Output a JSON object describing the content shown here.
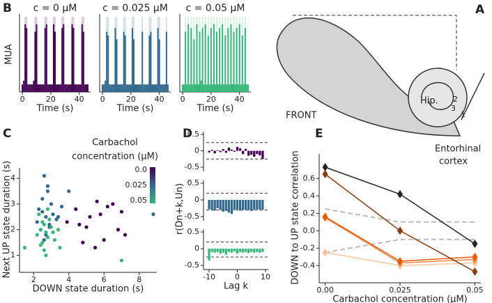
{
  "panels": {
    "a": "A",
    "b": "B",
    "c": "C",
    "d": "D",
    "e": "E"
  },
  "diagram": {
    "front": "FRONT",
    "hip": "Hip.",
    "layer1": "1",
    "layer2": "2",
    "layer3": "3",
    "region": [
      "Entorhinal",
      "cortex"
    ]
  },
  "chart_data": [
    {
      "type": "area",
      "title": "c = 0 μM",
      "ylabel": "MUA",
      "xlabel": "Time (s)",
      "color": "#440154",
      "x": [
        0,
        1,
        2,
        3,
        4,
        5,
        6,
        7,
        8,
        9,
        10,
        11,
        12,
        13,
        14,
        15,
        16,
        17,
        18,
        19,
        20,
        21,
        22,
        23,
        24,
        25,
        26,
        27,
        28,
        29,
        30,
        31,
        32,
        33,
        34,
        35,
        36,
        37,
        38,
        39,
        40,
        41,
        42,
        43,
        44,
        45,
        46
      ],
      "values": [
        0.1,
        0.15,
        0.9,
        0.85,
        0.1,
        0.1,
        0.1,
        0.1,
        0.15,
        0.8,
        0.9,
        0.1,
        0.1,
        0.1,
        0.1,
        0.1,
        0.85,
        0.9,
        0.1,
        0.1,
        0.1,
        0.1,
        0.9,
        0.8,
        0.1,
        0.1,
        0.1,
        0.1,
        0.85,
        0.9,
        0.1,
        0.1,
        0.1,
        0.1,
        0.1,
        0.9,
        0.85,
        0.1,
        0.1,
        0.1,
        0.1,
        0.1,
        0.9,
        0.8,
        0.1,
        0.1,
        0.1
      ],
      "xlim": [
        -2,
        48
      ],
      "ylim": [
        0,
        1
      ],
      "xticks": [
        0,
        20,
        40
      ]
    },
    {
      "type": "area",
      "title": "c = 0.025 μM",
      "xlabel": "Time (s)",
      "color": "#31688e",
      "x": [
        0,
        1,
        2,
        3,
        4,
        5,
        6,
        7,
        8,
        9,
        10,
        11,
        12,
        13,
        14,
        15,
        16,
        17,
        18,
        19,
        20,
        21,
        22,
        23,
        24,
        25,
        26,
        27,
        28,
        29,
        30,
        31,
        32,
        33,
        34,
        35,
        36,
        37,
        38,
        39,
        40,
        41,
        42,
        43,
        44,
        45,
        46
      ],
      "values": [
        0.1,
        0.1,
        0.15,
        0.8,
        0.75,
        0.1,
        0.1,
        0.1,
        0.1,
        0.85,
        0.7,
        0.1,
        0.1,
        0.1,
        0.1,
        0.8,
        0.75,
        0.1,
        0.1,
        0.1,
        0.1,
        0.85,
        0.7,
        0.1,
        0.1,
        0.1,
        0.1,
        0.1,
        0.8,
        0.1,
        0.1,
        0.1,
        0.1,
        0.75,
        0.8,
        0.1,
        0.1,
        0.1,
        0.1,
        0.85,
        0.7,
        0.1,
        0.1,
        0.1,
        0.1,
        0.8,
        0.1
      ],
      "xlim": [
        -2,
        48
      ],
      "ylim": [
        0,
        1
      ],
      "xticks": [
        0,
        20,
        40
      ]
    },
    {
      "type": "area",
      "title": "c = 0.05 μM",
      "xlabel": "Time (s)",
      "color": "#35b779",
      "x": [
        0,
        1,
        2,
        3,
        4,
        5,
        6,
        7,
        8,
        9,
        10,
        11,
        12,
        13,
        14,
        15,
        16,
        17,
        18,
        19,
        20,
        21,
        22,
        23,
        24,
        25,
        26,
        27,
        28,
        29,
        30,
        31,
        32,
        33,
        34,
        35,
        36,
        37,
        38,
        39,
        40,
        41,
        42,
        43,
        44,
        45,
        46
      ],
      "values": [
        0.1,
        0.1,
        0.8,
        0.1,
        0.9,
        0.1,
        0.85,
        0.1,
        0.7,
        0.1,
        0.9,
        0.1,
        0.8,
        0.15,
        0.85,
        0.1,
        0.9,
        0.1,
        0.75,
        0.1,
        0.85,
        0.1,
        0.9,
        0.1,
        0.8,
        0.1,
        0.85,
        0.1,
        0.9,
        0.1,
        0.75,
        0.1,
        0.85,
        0.1,
        0.9,
        0.1,
        0.8,
        0.1,
        0.85,
        0.1,
        0.9,
        0.1,
        0.75,
        0.1,
        0.85,
        0.1,
        0.1
      ],
      "xlim": [
        -2,
        48
      ],
      "ylim": [
        0,
        1
      ],
      "xticks": [
        0,
        20,
        40
      ]
    },
    {
      "type": "scatter",
      "xlabel": "DOWN state duration (s)",
      "ylabel": "Next UP state duration (s)",
      "colorbar_label": [
        "Carbachol",
        "concentration (μM)"
      ],
      "xlim": [
        1.2,
        9
      ],
      "ylim": [
        0.5,
        4.3
      ],
      "xticks": [
        2,
        4,
        6,
        8
      ],
      "yticks": [
        1,
        2,
        3,
        4
      ],
      "series": [
        {
          "name": "0.0",
          "color": "#440154",
          "x": [
            4.6,
            5.2,
            5.8,
            6.2,
            6.5,
            7.0,
            4.8,
            5.5,
            6.0,
            6.8,
            7.2,
            5.0,
            3.9,
            4.4,
            5.6
          ],
          "values": [
            2.2,
            2.5,
            2.6,
            2.9,
            3.0,
            2.7,
            1.5,
            1.3,
            1.6,
            2.0,
            1.8,
            2.1,
            2.3,
            2.8,
            3.1
          ]
        },
        {
          "name": "0.025",
          "color": "#31688e",
          "x": [
            2.3,
            2.5,
            2.7,
            2.9,
            3.1,
            2.4,
            2.6,
            2.8,
            3.3,
            3.6,
            4.0,
            2.2,
            2.7,
            3.0,
            8.8,
            2.5,
            2.9,
            3.4,
            2.6,
            2.8
          ],
          "values": [
            2.8,
            3.2,
            2.5,
            2.2,
            2.6,
            2.0,
            4.1,
            3.5,
            2.4,
            2.9,
            3.5,
            2.3,
            1.8,
            3.0,
            2.6,
            2.7,
            2.1,
            2.5,
            1.6,
            3.7
          ]
        },
        {
          "name": "0.05",
          "color": "#35b779",
          "x": [
            2.2,
            2.4,
            2.5,
            2.6,
            2.7,
            2.8,
            2.9,
            3.0,
            3.2,
            3.5,
            2.3,
            2.6,
            2.8,
            3.1,
            2.5,
            2.7,
            3.4,
            2.4,
            7.0,
            1.5
          ],
          "values": [
            1.8,
            2.0,
            1.5,
            2.2,
            1.9,
            1.7,
            2.4,
            2.1,
            1.6,
            1.3,
            2.6,
            1.2,
            2.8,
            1.9,
            2.3,
            1.0,
            2.0,
            1.4,
            0.8,
            1.3
          ]
        }
      ]
    },
    {
      "type": "bar",
      "color": "#440154",
      "x": [
        -10,
        -9,
        -8,
        -7,
        -6,
        -5,
        -4,
        -3,
        -2,
        -1,
        0,
        1,
        2,
        3,
        4,
        5,
        6,
        7,
        8,
        9
      ],
      "values": [
        -0.05,
        0.03,
        -0.08,
        0.02,
        -0.04,
        0.05,
        -0.06,
        0.1,
        0.04,
        -0.03,
        0.12,
        0.08,
        -0.1,
        0.06,
        -0.15,
        -0.12,
        -0.18,
        -0.1,
        -0.14,
        -0.25
      ],
      "bounds": [
        0.25,
        -0.25
      ],
      "xlim": [
        -12,
        11
      ],
      "ylim": [
        -0.5,
        0.5
      ],
      "yticks": [
        0.5,
        0,
        -0.5
      ]
    },
    {
      "type": "bar",
      "color": "#31688e",
      "ylabel": "r(Dn+k,Un)",
      "x": [
        -10,
        -9,
        -8,
        -7,
        -6,
        -5,
        -4,
        -3,
        -2,
        -1,
        0,
        1,
        2,
        3,
        4,
        5,
        6,
        7,
        8,
        9
      ],
      "values": [
        -0.28,
        -0.3,
        -0.32,
        -0.25,
        -0.3,
        -0.35,
        -0.33,
        -0.38,
        -0.42,
        -0.3,
        -0.28,
        -0.32,
        -0.3,
        -0.29,
        -0.31,
        -0.33,
        -0.3,
        -0.28,
        -0.3,
        -0.29
      ],
      "bounds": [
        0.2,
        -0.3
      ],
      "xlim": [
        -12,
        11
      ],
      "ylim": [
        -0.5,
        0.5
      ],
      "yticks": [
        0.5,
        0,
        -0.5
      ]
    },
    {
      "type": "bar",
      "color": "#35b779",
      "xlabel": "Lag k",
      "x": [
        -10,
        -9,
        -8,
        -7,
        -6,
        -5,
        -4,
        -3,
        -2,
        -1,
        0,
        1,
        2,
        3,
        4,
        5,
        6,
        7,
        8,
        9
      ],
      "values": [
        -0.35,
        -0.1,
        -0.12,
        -0.1,
        -0.15,
        -0.12,
        -0.18,
        -0.1,
        -0.12,
        -0.08,
        -0.15,
        -0.1,
        -0.12,
        -0.1,
        -0.13,
        -0.1,
        -0.12,
        -0.1,
        -0.12,
        -0.1
      ],
      "bounds": [
        0.2,
        -0.25
      ],
      "xlim": [
        -12,
        11
      ],
      "ylim": [
        -0.5,
        0.5
      ],
      "yticks": [
        0.5,
        0,
        -0.5
      ],
      "xticks": [
        -10,
        0,
        10
      ]
    },
    {
      "type": "line",
      "xlabel": "Carbachol concentration (μM)",
      "ylabel": "DOWN to UP state correlation",
      "x": [
        0,
        0.025,
        0.05
      ],
      "xlim": [
        -0.002,
        0.052
      ],
      "ylim": [
        -0.55,
        0.85
      ],
      "xticks": [
        {
          "value": 0,
          "label": "0.00"
        },
        0.025,
        0.05
      ],
      "yticks": [
        0.6,
        0.4,
        0.2,
        {
          "value": 0,
          "label": "0.0"
        },
        -0.2,
        -0.4
      ],
      "series": [
        {
          "color": "#bbbbbb",
          "dash": true,
          "values": [
            0.25,
            0.1,
            0.1
          ]
        },
        {
          "color": "#bbbbbb",
          "dash": true,
          "values": [
            -0.25,
            -0.1,
            -0.1
          ]
        },
        {
          "color": "#fbc39a",
          "values": [
            -0.25,
            -0.4,
            -0.37
          ],
          "markers": true
        },
        {
          "color": "#f5853f",
          "values": [
            0.15,
            -0.37,
            -0.33
          ],
          "markers": true
        },
        {
          "color": "#e8590c",
          "values": [
            0.16,
            -0.35,
            -0.3
          ],
          "markers": true
        },
        {
          "color": "#8c3b0c",
          "values": [
            0.65,
            0.0,
            -0.47
          ],
          "markers": true
        },
        {
          "color": "#222222",
          "values": [
            0.73,
            0.42,
            -0.15
          ],
          "markers": true
        }
      ]
    }
  ]
}
